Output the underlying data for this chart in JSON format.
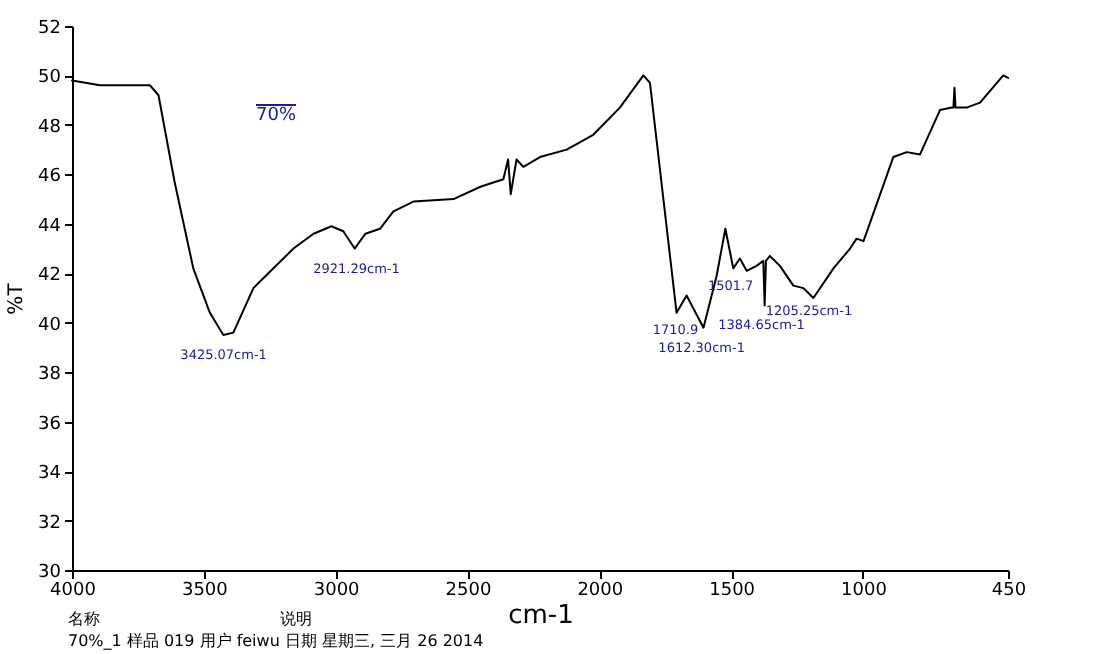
{
  "chart_data": {
    "type": "line",
    "xlabel": "cm-1",
    "ylabel": "%T",
    "xlim": [
      4000,
      450
    ],
    "xticks": [
      4000,
      3500,
      3000,
      2500,
      2000,
      1500,
      1000,
      450
    ],
    "ylim": [
      30,
      52
    ],
    "yticks": [
      30,
      32,
      34,
      36,
      38,
      40,
      42,
      44,
      46,
      48,
      50,
      52
    ],
    "grid": false,
    "marker": "none",
    "line_style": "solid",
    "series": [
      {
        "color": "#000000",
        "x": [
          4000,
          3894,
          3704,
          3672,
          3611,
          3540,
          3477,
          3426,
          3388,
          3312,
          3236,
          3160,
          3084,
          3016,
          2971,
          2928,
          2887,
          2832,
          2781,
          2705,
          2553,
          2451,
          2364,
          2346,
          2336,
          2314,
          2288,
          2225,
          2124,
          2023,
          1922,
          1833,
          1808,
          1757,
          1707,
          1669,
          1605,
          1555,
          1522,
          1492,
          1467,
          1441,
          1404,
          1378,
          1373,
          1368,
          1353,
          1315,
          1264,
          1226,
          1188,
          1112,
          1049,
          1024,
          998,
          885,
          834,
          784,
          708,
          663,
          657,
          653,
          649,
          607,
          556,
          468,
          450
        ],
        "values": [
          49.8,
          49.6,
          49.6,
          49.2,
          45.7,
          42.2,
          40.4,
          39.5,
          39.6,
          41.4,
          42.2,
          43.0,
          43.6,
          43.9,
          43.7,
          43.0,
          43.6,
          43.8,
          44.5,
          44.9,
          45.0,
          45.5,
          45.8,
          46.6,
          45.2,
          46.6,
          46.3,
          46.7,
          47.0,
          47.6,
          48.7,
          50.0,
          49.7,
          45.0,
          40.4,
          41.1,
          39.8,
          41.9,
          43.8,
          42.2,
          42.6,
          42.1,
          42.3,
          42.5,
          40.7,
          42.5,
          42.7,
          42.3,
          41.5,
          41.4,
          41.0,
          42.2,
          43.0,
          43.4,
          43.3,
          46.7,
          46.9,
          46.8,
          48.6,
          48.7,
          48.7,
          49.5,
          48.7,
          48.7,
          48.9,
          50.0,
          49.9
        ]
      }
    ],
    "annotations": [
      "70%",
      {
        "text": "3425.07cm-1",
        "x": 3425,
        "y": 39.5
      },
      {
        "text": "2921.29cm-1",
        "x": 2921,
        "y": 43.0
      },
      {
        "text": "1710.9",
        "x": 1711,
        "y": 40.5
      },
      {
        "text": "1612.30cm-1",
        "x": 1612,
        "y": 39.8
      },
      {
        "text": "1501.7",
        "x": 1502,
        "y": 42.3
      },
      {
        "text": "1384.65cm-1",
        "x": 1385,
        "y": 40.7
      },
      {
        "text": "1205.25cm-1",
        "x": 1205,
        "y": 41.3
      },
      "名称",
      "说明",
      "70%_1  样品 019 用户 feiwu 日期 星期三, 三月 26 2014"
    ]
  }
}
